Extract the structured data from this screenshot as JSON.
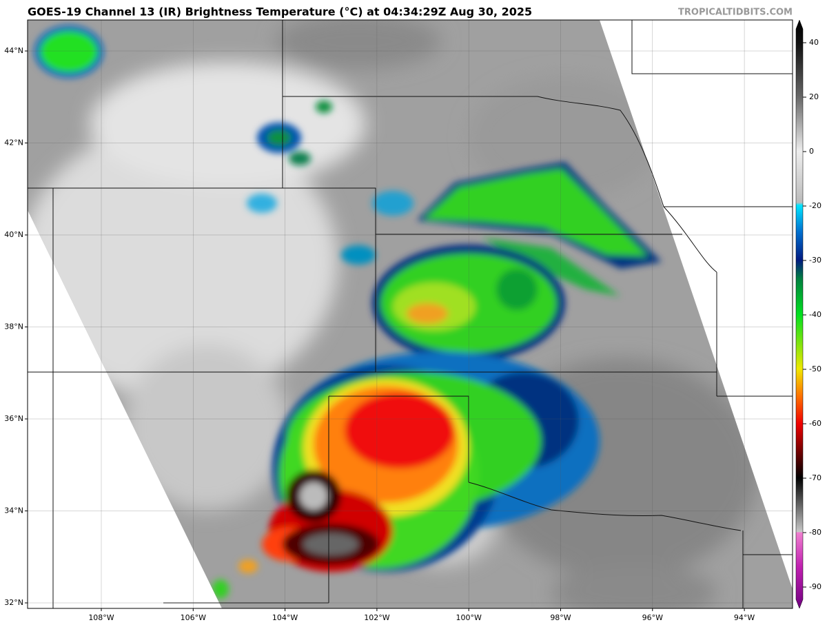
{
  "header": {
    "title": "GOES-19 Channel 13 (IR) Brightness Temperature (°C) at 04:34:29Z Aug 30, 2025",
    "watermark": "TROPICALTIDBITS.COM"
  },
  "map": {
    "latitude_labels": [
      "44°N",
      "42°N",
      "40°N",
      "38°N",
      "36°N",
      "34°N",
      "32°N"
    ],
    "longitude_labels": [
      "108°W",
      "106°W",
      "104°W",
      "102°W",
      "100°W",
      "98°W",
      "96°W",
      "94°W"
    ]
  },
  "colorbar": {
    "ticks": [
      40,
      20,
      0,
      -20,
      -30,
      -40,
      -50,
      -60,
      -70,
      -80,
      -90
    ]
  }
}
